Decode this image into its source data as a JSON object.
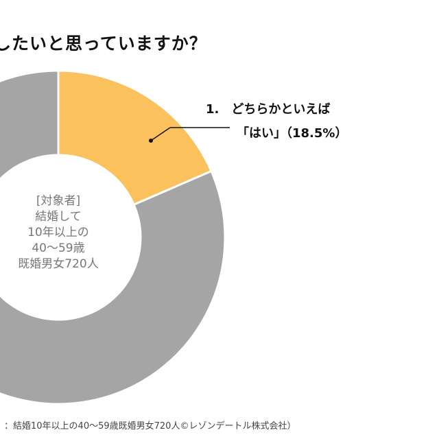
{
  "title": "したいと思っていますか？",
  "chart_data": {
    "type": "pie",
    "donut": true,
    "slices": [
      {
        "label": "1.　どちらかといえば「はい」",
        "value": 18.5,
        "color": "#FAC15C"
      },
      {
        "label": "",
        "value": 81.5,
        "color": "#A5A5A5"
      }
    ],
    "annotation": {
      "line1": "1.　どちらかといえば",
      "line2": "「はい」（18.5%）"
    },
    "center_text": [
      "[対象者]",
      "結婚して",
      "10年以上の",
      "40〜59歳",
      "既婚男女720人"
    ]
  },
  "footer": "：結婚10年以上の40〜59歳既婚男女720人©レゾンデートル株式会社）"
}
